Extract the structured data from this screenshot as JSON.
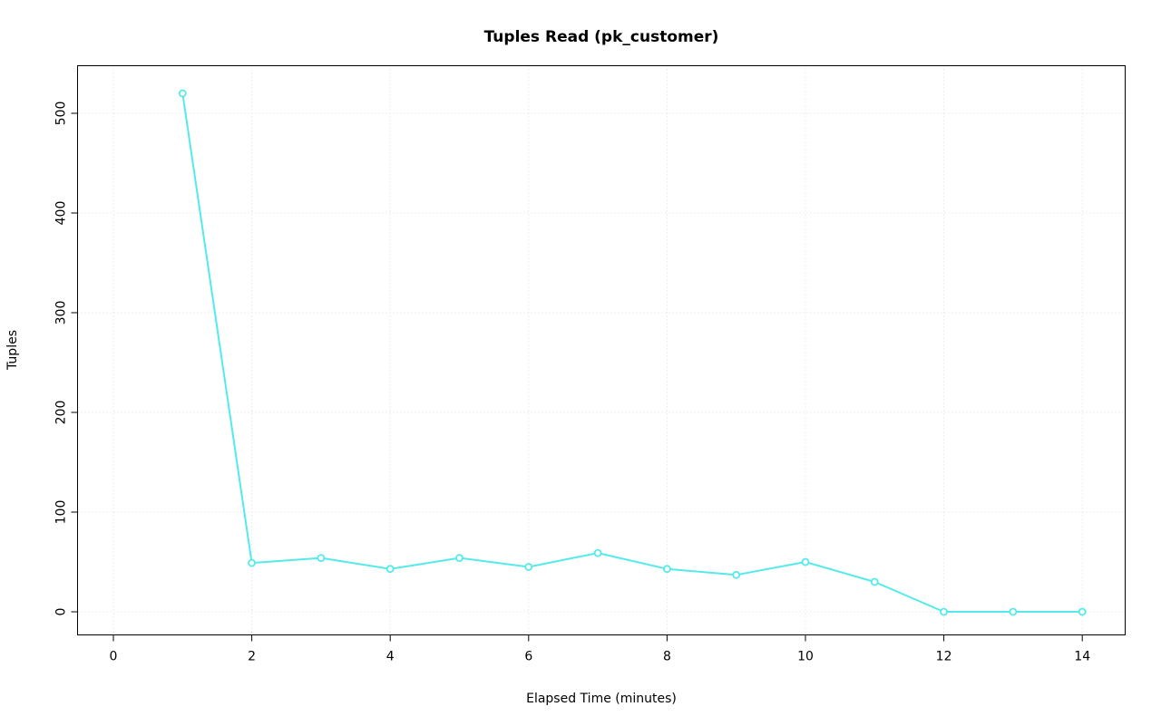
{
  "chart_data": {
    "type": "line",
    "title": "Tuples Read (pk_customer)",
    "xlabel": "Elapsed Time (minutes)",
    "ylabel": "Tuples",
    "x": [
      1,
      2,
      3,
      4,
      5,
      6,
      7,
      8,
      9,
      10,
      11,
      12,
      13,
      14
    ],
    "series": [
      {
        "name": "Tuples",
        "values": [
          520,
          49,
          54,
          43,
          54,
          45,
          59,
          43,
          37,
          50,
          30,
          0,
          0,
          0
        ]
      }
    ],
    "xticks": [
      0,
      2,
      4,
      6,
      8,
      10,
      12,
      14
    ],
    "yticks": [
      0,
      100,
      200,
      300,
      400,
      500
    ],
    "xlim": [
      -0.52,
      14.6
    ],
    "ylim": [
      -22.7,
      548
    ],
    "grid": true,
    "grid_style": "dotted",
    "grid_color": "#d9d9d9",
    "axis_color": "#000000",
    "line_color": "#55eaea",
    "point_style": "open-circle",
    "legend_position": "none"
  }
}
